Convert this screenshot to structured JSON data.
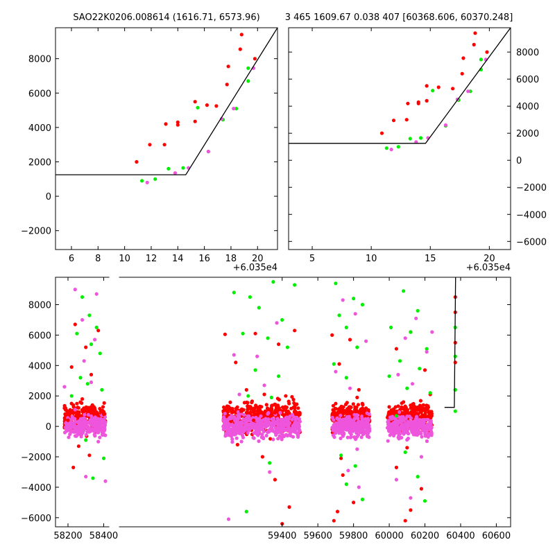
{
  "chart_data": [
    {
      "type": "scatter",
      "title": "SAO22K0206.008614 (1616.71, 6573.96)",
      "x_offset_label": "+6.035e4",
      "xlim": [
        4.8,
        21.5
      ],
      "ylim": [
        -3100,
        9800
      ],
      "xticks": [
        6,
        8,
        10,
        12,
        14,
        16,
        18,
        20
      ],
      "yticks": [
        -2000,
        0,
        2000,
        4000,
        6000,
        8000
      ],
      "y_axis_side": "left",
      "model_line": [
        [
          4.8,
          1250
        ],
        [
          14.6,
          1250
        ],
        [
          21.5,
          9800
        ]
      ],
      "series": [
        {
          "color": "#ff0000",
          "points": [
            [
              10.9,
              2000
            ],
            [
              11.9,
              3000
            ],
            [
              13.0,
              3000
            ],
            [
              13.1,
              4200
            ],
            [
              14.0,
              4150
            ],
            [
              14.0,
              4300
            ],
            [
              15.3,
              4350
            ],
            [
              15.3,
              5500
            ],
            [
              16.2,
              5300
            ],
            [
              16.9,
              5250
            ],
            [
              17.8,
              7550
            ],
            [
              17.7,
              6500
            ],
            [
              18.7,
              8550
            ],
            [
              18.8,
              9400
            ],
            [
              19.8,
              8000
            ]
          ]
        },
        {
          "color": "#00ee00",
          "points": [
            [
              11.3,
              900
            ],
            [
              12.3,
              1000
            ],
            [
              13.3,
              1600
            ],
            [
              14.4,
              1650
            ],
            [
              15.5,
              5150
            ],
            [
              16.3,
              2600
            ],
            [
              17.4,
              4450
            ],
            [
              18.4,
              5100
            ],
            [
              19.3,
              7450
            ],
            [
              19.3,
              6700
            ]
          ]
        },
        {
          "color": "#ee55dd",
          "points": [
            [
              11.7,
              800
            ],
            [
              13.8,
              1350
            ],
            [
              14.8,
              1650
            ],
            [
              16.3,
              2600
            ],
            [
              17.3,
              4500
            ],
            [
              18.2,
              5100
            ],
            [
              19.7,
              7450
            ]
          ]
        }
      ]
    },
    {
      "type": "scatter",
      "title": "3 465 1609.67 0.038 407 [60368.606, 60370.248]",
      "x_offset_label": "+6.035e4",
      "xlim": [
        3.0,
        21.8
      ],
      "ylim": [
        -6600,
        9800
      ],
      "xticks": [
        5,
        10,
        15,
        20
      ],
      "yticks": [
        -6000,
        -4000,
        -2000,
        0,
        2000,
        4000,
        6000,
        8000
      ],
      "y_axis_side": "right",
      "model_line": [
        [
          3.0,
          1250
        ],
        [
          14.6,
          1250
        ],
        [
          21.8,
          9800
        ]
      ],
      "series": [
        {
          "color": "#ff0000",
          "points": [
            [
              10.9,
              2000
            ],
            [
              11.9,
              2950
            ],
            [
              13.0,
              3000
            ],
            [
              13.1,
              4200
            ],
            [
              14.0,
              4200
            ],
            [
              14.0,
              4300
            ],
            [
              14.7,
              4400
            ],
            [
              14.7,
              5500
            ],
            [
              15.7,
              5400
            ],
            [
              16.9,
              5300
            ],
            [
              17.8,
              7550
            ],
            [
              17.7,
              6400
            ],
            [
              18.7,
              8550
            ],
            [
              18.8,
              9400
            ],
            [
              19.8,
              8000
            ]
          ]
        },
        {
          "color": "#00ee00",
          "points": [
            [
              11.3,
              900
            ],
            [
              12.3,
              1000
            ],
            [
              13.3,
              1600
            ],
            [
              14.2,
              1650
            ],
            [
              15.2,
              5150
            ],
            [
              16.3,
              2550
            ],
            [
              17.4,
              4450
            ],
            [
              18.4,
              5100
            ],
            [
              19.3,
              7450
            ],
            [
              19.3,
              6700
            ]
          ]
        },
        {
          "color": "#ee55dd",
          "points": [
            [
              11.7,
              800
            ],
            [
              13.8,
              1350
            ],
            [
              14.8,
              1650
            ],
            [
              16.3,
              2600
            ],
            [
              17.3,
              4500
            ],
            [
              18.2,
              5100
            ],
            [
              19.7,
              7450
            ]
          ]
        }
      ]
    },
    {
      "type": "scatter",
      "title": "",
      "xlim": [
        58130,
        60680
      ],
      "ylim": [
        -6600,
        9800
      ],
      "xticks": [
        58200,
        58400,
        59400,
        59600,
        59800,
        60000,
        60200,
        60400,
        60600
      ],
      "yticks": [
        -6000,
        -4000,
        -2000,
        0,
        2000,
        4000,
        6000,
        8000
      ],
      "y_axis_side": "left",
      "axis_gap_near": 58420,
      "model_line": [
        [
          60310,
          1250
        ],
        [
          60364.6,
          1250
        ],
        [
          60371.8,
          9800
        ]
      ],
      "series": [
        {
          "color": "#ff0000",
          "points": [
            [
              58240,
              6700
            ],
            [
              58300,
              5200
            ],
            [
              58370,
              6300
            ],
            [
              58220,
              3900
            ],
            [
              58330,
              3400
            ],
            [
              58280,
              1800
            ],
            [
              58180,
              1200
            ],
            [
              58250,
              1500
            ],
            [
              58350,
              1100
            ],
            [
              58400,
              800
            ],
            [
              58200,
              400
            ],
            [
              58260,
              -1300
            ],
            [
              58320,
              -1900
            ],
            [
              58230,
              -2700
            ],
            [
              59080,
              6050
            ],
            [
              59140,
              4200
            ],
            [
              59250,
              6100
            ],
            [
              59380,
              5400
            ],
            [
              59470,
              6300
            ],
            [
              59200,
              2400
            ],
            [
              59300,
              2100
            ],
            [
              59420,
              2000
            ],
            [
              59100,
              1300
            ],
            [
              59170,
              1000
            ],
            [
              59360,
              900
            ],
            [
              59490,
              1200
            ],
            [
              59240,
              400
            ],
            [
              59150,
              -1200
            ],
            [
              59290,
              -2000
            ],
            [
              59360,
              -3500
            ],
            [
              59440,
              -5300
            ],
            [
              59400,
              -6400
            ],
            [
              59680,
              6000
            ],
            [
              59720,
              4100
            ],
            [
              59780,
              5700
            ],
            [
              59830,
              2400
            ],
            [
              59700,
              1500
            ],
            [
              59760,
              900
            ],
            [
              59820,
              1900
            ],
            [
              59870,
              1200
            ],
            [
              59730,
              -2100
            ],
            [
              59740,
              -3200
            ],
            [
              59800,
              -5000
            ],
            [
              59710,
              -5600
            ],
            [
              59690,
              -6200
            ],
            [
              60040,
              5100
            ],
            [
              60120,
              6200
            ],
            [
              60200,
              3700
            ],
            [
              60230,
              2100
            ],
            [
              60080,
              1600
            ],
            [
              60000,
              900
            ],
            [
              60150,
              1100
            ],
            [
              60100,
              -1400
            ],
            [
              60040,
              -2700
            ],
            [
              60180,
              -4100
            ],
            [
              60120,
              -5500
            ],
            [
              60090,
              -6200
            ],
            [
              60370,
              4200
            ],
            [
              60370,
              5500
            ],
            [
              60370,
              7500
            ],
            [
              60370,
              8500
            ]
          ]
        },
        {
          "color": "#00ee00",
          "points": [
            [
              58280,
              8500
            ],
            [
              58320,
              7300
            ],
            [
              58250,
              6100
            ],
            [
              58360,
              6500
            ],
            [
              58330,
              5400
            ],
            [
              58380,
              4800
            ],
            [
              58270,
              3200
            ],
            [
              58310,
              2800
            ],
            [
              58390,
              2400
            ],
            [
              58220,
              2000
            ],
            [
              58300,
              -900
            ],
            [
              58340,
              -3400
            ],
            [
              58400,
              -2100
            ],
            [
              59130,
              8800
            ],
            [
              59220,
              8500
            ],
            [
              59350,
              9500
            ],
            [
              59470,
              9300
            ],
            [
              59270,
              7800
            ],
            [
              59400,
              7000
            ],
            [
              59180,
              6100
            ],
            [
              59320,
              5800
            ],
            [
              59430,
              5200
            ],
            [
              59250,
              3700
            ],
            [
              59380,
              3300
            ],
            [
              59210,
              2000
            ],
            [
              59340,
              1900
            ],
            [
              59200,
              -5600
            ],
            [
              59330,
              -2400
            ],
            [
              59700,
              9400
            ],
            [
              59800,
              8400
            ],
            [
              59850,
              8000
            ],
            [
              59720,
              7300
            ],
            [
              59760,
              6500
            ],
            [
              59820,
              5200
            ],
            [
              59690,
              4100
            ],
            [
              59760,
              3200
            ],
            [
              59730,
              -1900
            ],
            [
              59810,
              -2600
            ],
            [
              59760,
              -3800
            ],
            [
              59850,
              -4800
            ],
            [
              60080,
              8900
            ],
            [
              60160,
              7600
            ],
            [
              60010,
              6500
            ],
            [
              60120,
              6200
            ],
            [
              60210,
              5100
            ],
            [
              60060,
              4300
            ],
            [
              60170,
              3800
            ],
            [
              60000,
              3300
            ],
            [
              60100,
              2500
            ],
            [
              60230,
              2200
            ],
            [
              60040,
              700
            ],
            [
              60090,
              -1700
            ],
            [
              60160,
              -3300
            ],
            [
              60200,
              -4900
            ],
            [
              60370,
              1000
            ],
            [
              60370,
              2400
            ],
            [
              60370,
              4600
            ],
            [
              60370,
              6500
            ]
          ]
        },
        {
          "color": "#ee55dd",
          "points": [
            [
              58240,
              9000
            ],
            [
              58360,
              8700
            ],
            [
              58280,
              7000
            ],
            [
              58350,
              5700
            ],
            [
              58290,
              4300
            ],
            [
              58180,
              2600
            ],
            [
              58330,
              2900
            ],
            [
              58240,
              1100
            ],
            [
              58370,
              -1000
            ],
            [
              58300,
              -3300
            ],
            [
              58410,
              -3600
            ],
            [
              59130,
              4700
            ],
            [
              59260,
              4600
            ],
            [
              59370,
              6800
            ],
            [
              59300,
              2700
            ],
            [
              59160,
              2100
            ],
            [
              59330,
              -3000
            ],
            [
              59100,
              -6100
            ],
            [
              59740,
              8300
            ],
            [
              59810,
              7400
            ],
            [
              59870,
              5600
            ],
            [
              59700,
              3600
            ],
            [
              59780,
              2500
            ],
            [
              59820,
              -1500
            ],
            [
              59770,
              -2900
            ],
            [
              59830,
              -4000
            ],
            [
              60150,
              7100
            ],
            [
              60240,
              6200
            ],
            [
              60090,
              5800
            ],
            [
              60210,
              4900
            ],
            [
              60050,
              3400
            ],
            [
              60130,
              2800
            ],
            [
              60180,
              -2000
            ],
            [
              60040,
              -3500
            ],
            [
              60120,
              -4700
            ]
          ]
        }
      ],
      "clusters": [
        {
          "x_range": [
            58180,
            58410
          ],
          "y_center": 0,
          "y_spread": 700,
          "red_top": 2100,
          "pink_top": 1400,
          "count": 260
        },
        {
          "x_range": [
            59070,
            59500
          ],
          "y_center": 0,
          "y_spread": 800,
          "red_top": 2300,
          "pink_top": 1600,
          "count": 420
        },
        {
          "x_range": [
            59680,
            59890
          ],
          "y_center": 0,
          "y_spread": 700,
          "red_top": 2200,
          "pink_top": 1500,
          "count": 260
        },
        {
          "x_range": [
            59990,
            60240
          ],
          "y_center": 0,
          "y_spread": 700,
          "red_top": 2100,
          "pink_top": 1400,
          "count": 300
        }
      ]
    }
  ]
}
